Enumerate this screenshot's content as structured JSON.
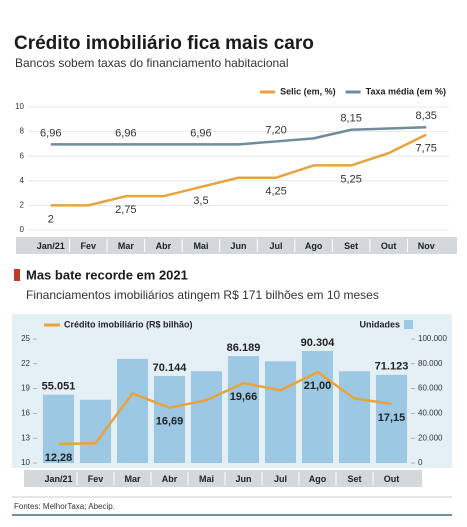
{
  "chart_data": [
    {
      "type": "line",
      "title": "Crédito imobiliário fica mais caro",
      "subtitle": "Bancos sobem taxas do financiamento habitacional",
      "categories": [
        "Jan/21",
        "Fev",
        "Mar",
        "Abr",
        "Mai",
        "Jun",
        "Jul",
        "Ago",
        "Set",
        "Out",
        "Nov"
      ],
      "series": [
        {
          "name": "Selic (em, %)",
          "color": "#e8a33d",
          "values": [
            2,
            2,
            2.75,
            2.75,
            3.5,
            4.25,
            4.25,
            5.25,
            5.25,
            6.25,
            7.75
          ],
          "value_labels": [
            "2",
            null,
            "2,75",
            null,
            "3,5",
            null,
            "4,25",
            null,
            "5,25",
            null,
            "7,75"
          ]
        },
        {
          "name": "Taxa média (em %)",
          "color": "#6f8c9c",
          "values": [
            6.96,
            6.96,
            6.96,
            6.96,
            6.96,
            6.96,
            7.2,
            7.45,
            8.15,
            8.25,
            8.35
          ],
          "value_labels": [
            "6,96",
            null,
            "6,96",
            null,
            "6,96",
            null,
            "7,20",
            null,
            "8,15",
            null,
            "8,35"
          ]
        }
      ],
      "ylim": [
        0,
        10
      ],
      "yticks": [
        0,
        2,
        4,
        6,
        8,
        10
      ],
      "grid": true,
      "legend": "top-right"
    },
    {
      "type": "combo",
      "title": "Mas bate recorde em 2021",
      "subtitle": "Financiamentos imobiliários atingem R$ 171 bilhões em 10 meses",
      "categories": [
        "Jan/21",
        "Fev",
        "Mar",
        "Abr",
        "Mai",
        "Jun",
        "Jul",
        "Ago",
        "Set",
        "Out"
      ],
      "series": [
        {
          "name": "Unidades",
          "type": "bar",
          "axis": "y2",
          "color": "#9cc8e4",
          "values": [
            55051,
            51000,
            84000,
            70144,
            74000,
            86189,
            82000,
            90304,
            74000,
            71123
          ],
          "value_labels": [
            "55.051",
            null,
            null,
            "70.144",
            null,
            "86.189",
            null,
            "90.304",
            null,
            "71.123"
          ]
        },
        {
          "name": "Crédito imobiliário (R$ bilhão)",
          "type": "line",
          "color": "#e8a33d",
          "values": [
            12.28,
            12.4,
            18.4,
            16.69,
            17.6,
            19.66,
            18.8,
            21.0,
            17.8,
            17.15
          ],
          "value_labels": [
            "12,28",
            null,
            null,
            "16,69",
            null,
            "19,66",
            null,
            "21,00",
            null,
            "17,15"
          ]
        }
      ],
      "ylim": [
        10,
        25
      ],
      "yticks": [
        10,
        13,
        16,
        19,
        22,
        25
      ],
      "y2lim": [
        0,
        100000
      ],
      "y2ticks": [
        0,
        {
          "value": 20000,
          "label": "20.000"
        },
        {
          "value": 40000,
          "label": "40.000"
        },
        {
          "value": 60000,
          "label": "60.000"
        },
        {
          "value": 80000,
          "label": "80.000"
        },
        {
          "value": 100000,
          "label": "100.000"
        }
      ]
    }
  ],
  "source": "Fontes: MelhorTaxa; Abecip."
}
